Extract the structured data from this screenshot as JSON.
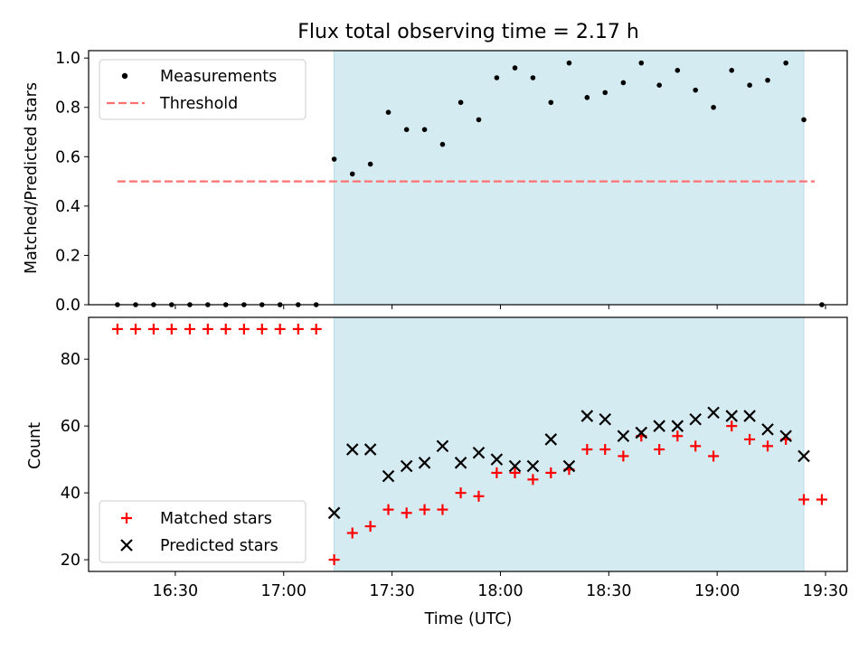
{
  "chart_data": [
    {
      "type": "scatter",
      "title": "Flux total observing time = 2.17 h",
      "xlabel": "",
      "ylabel": "Matched/Predicted stars",
      "xlim": [
        16.1,
        19.6
      ],
      "ylim": [
        0.0,
        1.03
      ],
      "yticks": [
        0.0,
        0.2,
        0.4,
        0.6,
        0.8,
        1.0
      ],
      "ytick_labels": [
        "0.0",
        "0.2",
        "0.4",
        "0.6",
        "0.8",
        "1.0"
      ],
      "xticks": [
        16.5,
        17.0,
        17.5,
        18.0,
        18.5,
        19.0,
        19.5
      ],
      "shaded_region": {
        "from": 17.233,
        "to": 19.4
      },
      "threshold": {
        "value": 0.5,
        "from": 16.233,
        "to": 19.45,
        "color": "#ff7070"
      },
      "legend": {
        "position": "upper-left",
        "entries": [
          "Measurements",
          "Threshold"
        ]
      },
      "series": [
        {
          "name": "Measurements",
          "x": [
            16.233,
            16.317,
            16.4,
            16.483,
            16.567,
            16.65,
            16.733,
            16.817,
            16.9,
            16.983,
            17.067,
            17.15,
            17.233,
            17.317,
            17.4,
            17.483,
            17.567,
            17.65,
            17.733,
            17.817,
            17.9,
            17.983,
            18.067,
            18.15,
            18.233,
            18.317,
            18.4,
            18.483,
            18.567,
            18.65,
            18.733,
            18.817,
            18.9,
            18.983,
            19.067,
            19.15,
            19.233,
            19.317,
            19.4,
            19.483
          ],
          "y": [
            0,
            0,
            0,
            0,
            0,
            0,
            0,
            0,
            0,
            0,
            0,
            0,
            0.59,
            0.53,
            0.57,
            0.78,
            0.71,
            0.71,
            0.65,
            0.82,
            0.75,
            0.92,
            0.96,
            0.92,
            0.82,
            0.98,
            0.84,
            0.86,
            0.9,
            0.98,
            0.89,
            0.95,
            0.87,
            0.8,
            0.95,
            0.89,
            0.91,
            0.98,
            0.75,
            0
          ]
        }
      ]
    },
    {
      "type": "scatter",
      "xlabel": "Time (UTC)",
      "ylabel": "Count",
      "xlim": [
        16.1,
        19.6
      ],
      "ylim": [
        16.5,
        92.5
      ],
      "yticks": [
        20,
        40,
        60,
        80
      ],
      "ytick_labels": [
        "20",
        "40",
        "60",
        "80"
      ],
      "xticks": [
        16.5,
        17.0,
        17.5,
        18.0,
        18.5,
        19.0,
        19.5
      ],
      "xtick_labels": [
        "16:30",
        "17:00",
        "17:30",
        "18:00",
        "18:30",
        "19:00",
        "19:30"
      ],
      "shaded_region": {
        "from": 17.233,
        "to": 19.4
      },
      "legend": {
        "position": "lower-left",
        "entries": [
          "Matched stars",
          "Predicted stars"
        ]
      },
      "series": [
        {
          "name": "Matched stars",
          "marker": "plus",
          "color": "#ff0000",
          "x": [
            16.233,
            16.317,
            16.4,
            16.483,
            16.567,
            16.65,
            16.733,
            16.817,
            16.9,
            16.983,
            17.067,
            17.15,
            17.233,
            17.317,
            17.4,
            17.483,
            17.567,
            17.65,
            17.733,
            17.817,
            17.9,
            17.983,
            18.067,
            18.15,
            18.233,
            18.317,
            18.4,
            18.483,
            18.567,
            18.65,
            18.733,
            18.817,
            18.9,
            18.983,
            19.067,
            19.15,
            19.233,
            19.317,
            19.4,
            19.483
          ],
          "y": [
            89,
            89,
            89,
            89,
            89,
            89,
            89,
            89,
            89,
            89,
            89,
            89,
            20,
            28,
            30,
            35,
            34,
            35,
            35,
            40,
            39,
            46,
            46,
            44,
            46,
            47,
            53,
            53,
            51,
            57,
            53,
            57,
            54,
            51,
            60,
            56,
            54,
            56,
            38,
            38
          ]
        },
        {
          "name": "Predicted stars",
          "marker": "x",
          "color": "#000000",
          "x": [
            17.233,
            17.317,
            17.4,
            17.483,
            17.567,
            17.65,
            17.733,
            17.817,
            17.9,
            17.983,
            18.067,
            18.15,
            18.233,
            18.317,
            18.4,
            18.483,
            18.567,
            18.65,
            18.733,
            18.817,
            18.9,
            18.983,
            19.067,
            19.15,
            19.233,
            19.317,
            19.4
          ],
          "y": [
            34,
            53,
            53,
            45,
            48,
            49,
            54,
            49,
            52,
            50,
            48,
            48,
            56,
            48,
            63,
            62,
            57,
            58,
            60,
            60,
            62,
            64,
            63,
            63,
            59,
            57,
            51
          ]
        }
      ]
    }
  ],
  "colors": {
    "shade": "#d4ebf1",
    "shade_edge": "#b8dce6",
    "matched": "#ff0000",
    "predicted": "#000000",
    "threshold": "#ff7070"
  }
}
